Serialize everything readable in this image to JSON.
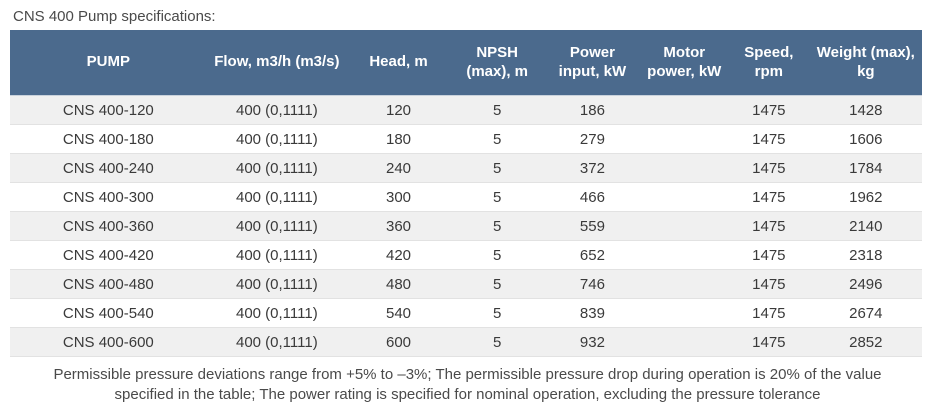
{
  "title": "CNS 400 Pump specifications:",
  "colors": {
    "header_bg": "#4b6a8d",
    "header_text": "#ffffff",
    "row_alt_bg": "#f0f0f0",
    "row_bg": "#ffffff",
    "body_text": "#3a3a3a",
    "caption_text": "#4a4a4a"
  },
  "table": {
    "columns": [
      {
        "key": "pump",
        "label": "PUMP"
      },
      {
        "key": "flow",
        "label": "Flow, m3/h (m3/s)"
      },
      {
        "key": "head",
        "label": "Head, m"
      },
      {
        "key": "npsh",
        "label": "NPSH (max), m"
      },
      {
        "key": "power",
        "label": "Power input, kW"
      },
      {
        "key": "motor",
        "label": "Motor power, kW"
      },
      {
        "key": "speed",
        "label": "Speed, rpm"
      },
      {
        "key": "weight",
        "label": "Weight (max), kg"
      }
    ],
    "row_keys": [
      "pump",
      "flow",
      "head",
      "npsh",
      "power",
      "motor",
      "speed",
      "weight"
    ],
    "rows": [
      {
        "pump": "CNS 400-120",
        "flow": "400 (0,1111)",
        "head": "120",
        "npsh": "5",
        "power": "186",
        "motor": "",
        "speed": "1475",
        "weight": "1428"
      },
      {
        "pump": "CNS 400-180",
        "flow": "400 (0,1111)",
        "head": "180",
        "npsh": "5",
        "power": "279",
        "motor": "",
        "speed": "1475",
        "weight": "1606"
      },
      {
        "pump": "CNS 400-240",
        "flow": "400 (0,1111)",
        "head": "240",
        "npsh": "5",
        "power": "372",
        "motor": "",
        "speed": "1475",
        "weight": "1784"
      },
      {
        "pump": "CNS 400-300",
        "flow": "400 (0,1111)",
        "head": "300",
        "npsh": "5",
        "power": "466",
        "motor": "",
        "speed": "1475",
        "weight": "1962"
      },
      {
        "pump": "CNS 400-360",
        "flow": "400 (0,1111)",
        "head": "360",
        "npsh": "5",
        "power": "559",
        "motor": "",
        "speed": "1475",
        "weight": "2140"
      },
      {
        "pump": "CNS 400-420",
        "flow": "400 (0,1111)",
        "head": "420",
        "npsh": "5",
        "power": "652",
        "motor": "",
        "speed": "1475",
        "weight": "2318"
      },
      {
        "pump": "CNS 400-480",
        "flow": "400 (0,1111)",
        "head": "480",
        "npsh": "5",
        "power": "746",
        "motor": "",
        "speed": "1475",
        "weight": "2496"
      },
      {
        "pump": "CNS 400-540",
        "flow": "400 (0,1111)",
        "head": "540",
        "npsh": "5",
        "power": "839",
        "motor": "",
        "speed": "1475",
        "weight": "2674"
      },
      {
        "pump": "CNS 400-600",
        "flow": "400 (0,1111)",
        "head": "600",
        "npsh": "5",
        "power": "932",
        "motor": "",
        "speed": "1475",
        "weight": "2852"
      }
    ]
  },
  "footnote": "Permissible pressure deviations range from +5% to –3%; The permissible pressure drop during operation is 20% of the value specified in the table; The power rating is specified for nominal operation, excluding the pressure tolerance"
}
